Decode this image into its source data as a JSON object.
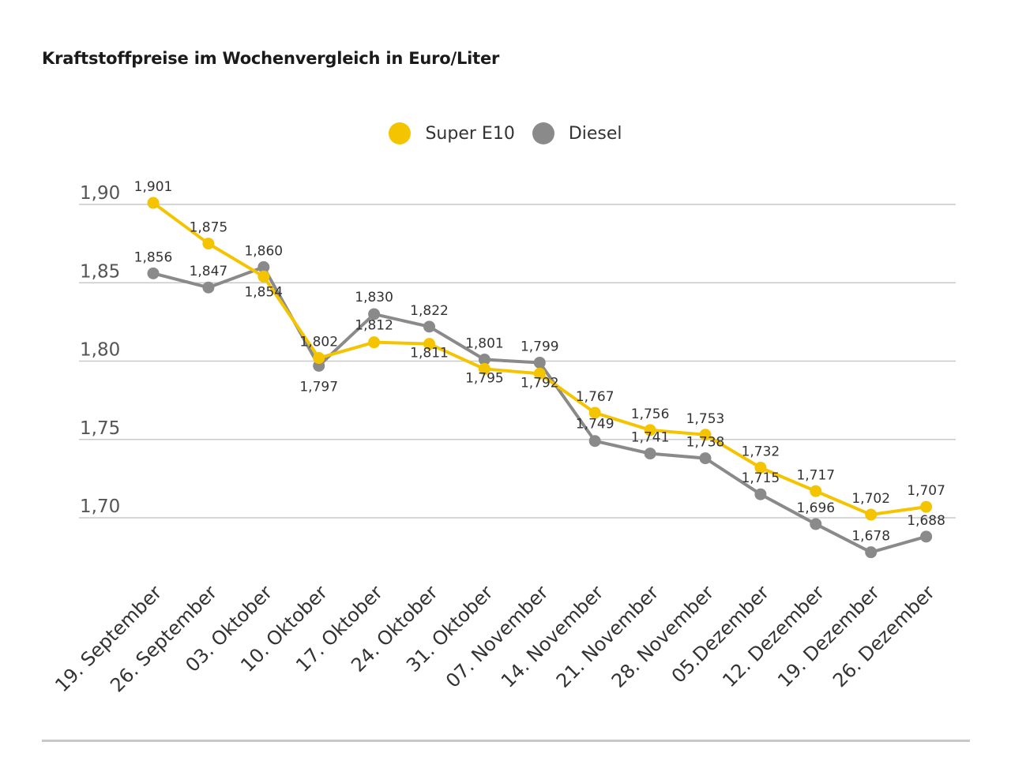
{
  "title": "Kraftstoffpreise im Wochenvergleich in Euro/Liter",
  "colors": {
    "super": "#f5c400",
    "diesel": "#8a8a8a",
    "grid": "#c9c9c9",
    "text": "#333333",
    "axis": "#555555"
  },
  "chart_data": {
    "type": "line",
    "categories": [
      "19. September",
      "26. September",
      "03. Oktober",
      "10. Oktober",
      "17. Oktober",
      "24. Oktober",
      "31. Oktober",
      "07. November",
      "14. November",
      "21. November",
      "28. November",
      "05.Dezember",
      "12. Dezember",
      "19. Dezember",
      "26. Dezember"
    ],
    "series": [
      {
        "name": "Super E10",
        "color": "#f5c400",
        "values": [
          1.901,
          1.875,
          1.854,
          1.802,
          1.812,
          1.811,
          1.795,
          1.792,
          1.767,
          1.756,
          1.753,
          1.732,
          1.717,
          1.702,
          1.707
        ],
        "labels": [
          "1,901",
          "1,875",
          "1,854",
          "1,802",
          "1,812",
          "1,811",
          "1,795",
          "1,792",
          "1,767",
          "1,756",
          "1,753",
          "1,732",
          "1,717",
          "1,702",
          "1,707"
        ]
      },
      {
        "name": "Diesel",
        "color": "#8a8a8a",
        "values": [
          1.856,
          1.847,
          1.86,
          1.797,
          1.83,
          1.822,
          1.801,
          1.799,
          1.749,
          1.741,
          1.738,
          1.715,
          1.696,
          1.678,
          1.688
        ],
        "labels": [
          "1,856",
          "1,847",
          "1,860",
          "1,797",
          "1,830",
          "1,822",
          "1,801",
          "1,799",
          "1,749",
          "1,741",
          "1,738",
          "1,715",
          "1,696",
          "1,678",
          "1,688"
        ]
      }
    ],
    "yticks": [
      1.7,
      1.75,
      1.8,
      1.85,
      1.9
    ],
    "ytick_labels": [
      "1,70",
      "1,75",
      "1,80",
      "1,85",
      "1,90"
    ],
    "legend_position": "top-center",
    "grid": true
  }
}
